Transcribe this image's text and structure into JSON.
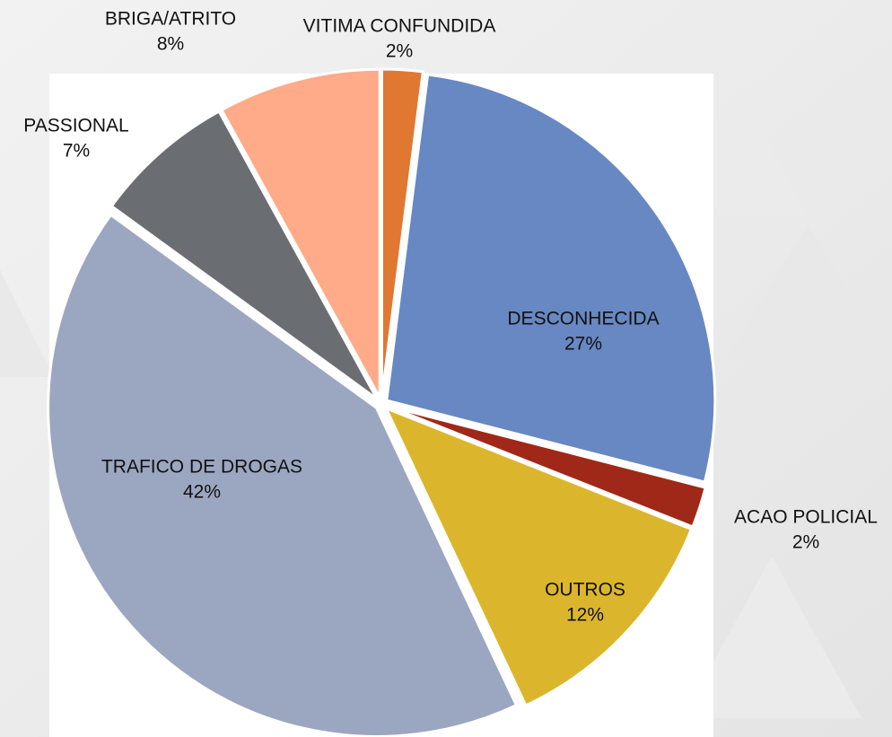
{
  "chart_data": {
    "type": "pie",
    "categories": [
      "VITIMA CONFUNDIDA",
      "DESCONHECIDA",
      "ACAO POLICIAL",
      "OUTROS",
      "TRAFICO DE DROGAS",
      "PASSIONAL",
      "BRIGA/ATRITO"
    ],
    "values": [
      2,
      27,
      2,
      12,
      42,
      7,
      8
    ],
    "value_labels": [
      "2%",
      "27%",
      "2%",
      "12%",
      "42%",
      "7%",
      "8%"
    ],
    "colors": [
      "#E07832",
      "#6788C2",
      "#A02818",
      "#DBB62C",
      "#9BA6C0",
      "#6A6E73",
      "#FFAA88"
    ]
  }
}
